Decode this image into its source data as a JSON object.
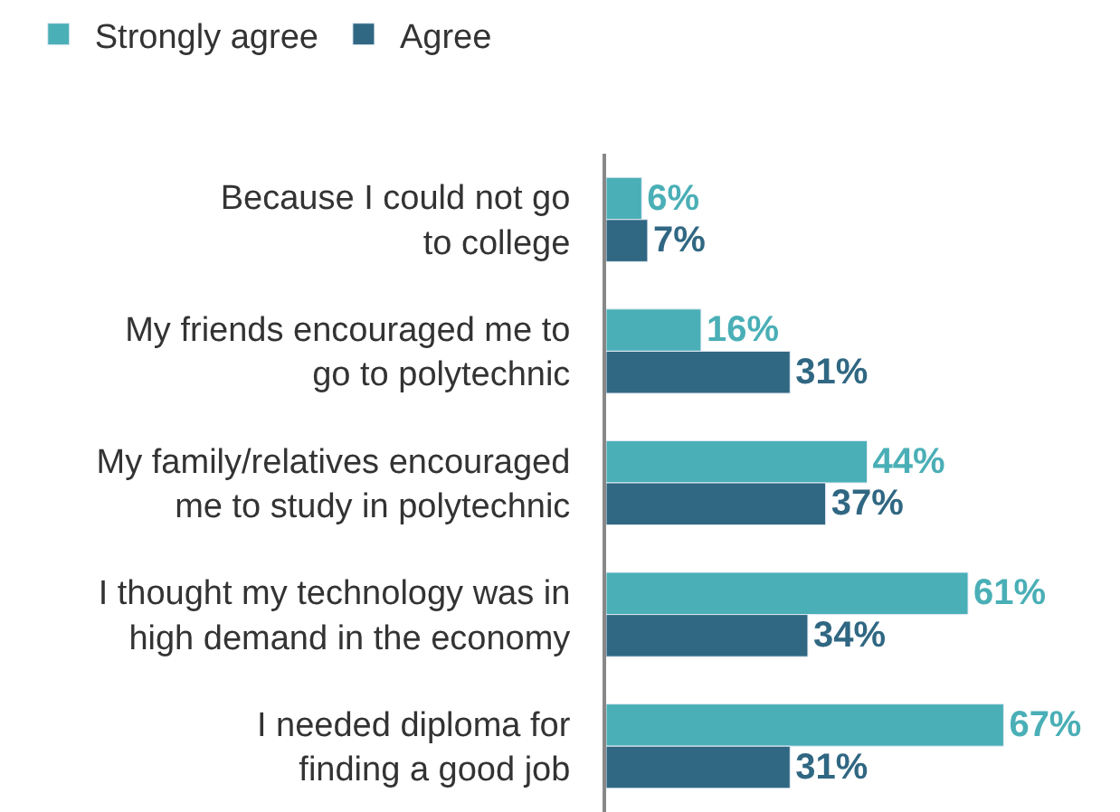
{
  "chart_data": {
    "type": "bar",
    "orientation": "horizontal",
    "legend": "top left",
    "categories": [
      "Because I could not go\nto college",
      "My friends encouraged me to\ngo to polytechnic",
      "My family/relatives encouraged\nme to study in polytechnic",
      "I thought my technology was in\nhigh demand in the economy",
      "I needed diploma for\nfinding a good job"
    ],
    "series": [
      {
        "name": "Strongly agree",
        "color": "#4aafb6",
        "values": [
          6,
          16,
          44,
          61,
          67
        ],
        "value_labels": [
          "6%",
          "16%",
          "44%",
          "61%",
          "67%"
        ]
      },
      {
        "name": "Agree",
        "color": "#306782",
        "values": [
          7,
          31,
          37,
          34,
          31
        ],
        "value_labels": [
          "7%",
          "31%",
          "37%",
          "34%",
          "31%"
        ]
      }
    ]
  }
}
